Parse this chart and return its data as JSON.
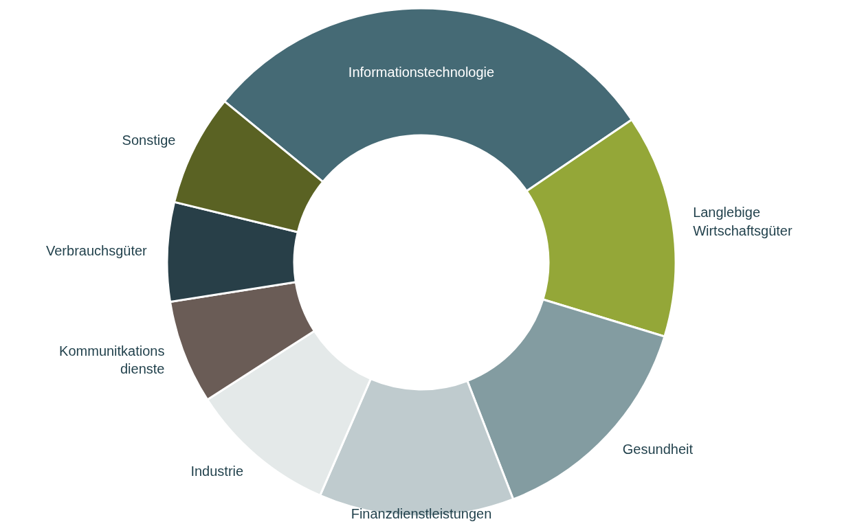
{
  "chart_data": {
    "type": "donut",
    "categories": [
      "Informationstechnologie",
      "Langlebige\nWirtschaftsgüter",
      "Gesundheit",
      "Finanzdienstleistungen",
      "Industrie",
      "Kommunitkations\ndienste",
      "Verbrauchsgüter",
      "Sonstige"
    ],
    "values": [
      29.6,
      14.2,
      14.4,
      12.4,
      9.4,
      6.6,
      6.3,
      7.1
    ],
    "colors": [
      "#456a75",
      "#94a738",
      "#839ca1",
      "#bfcbce",
      "#e4e9e9",
      "#6a5c56",
      "#283f48",
      "#5a6223"
    ]
  }
}
